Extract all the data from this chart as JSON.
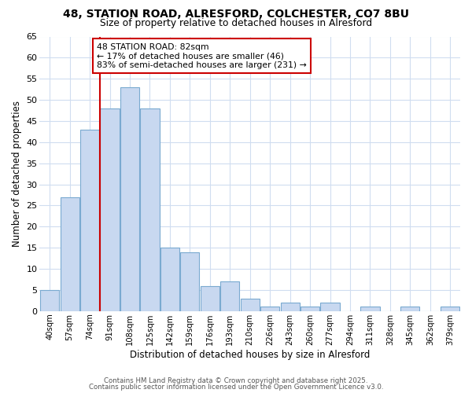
{
  "title_line1": "48, STATION ROAD, ALRESFORD, COLCHESTER, CO7 8BU",
  "title_line2": "Size of property relative to detached houses in Alresford",
  "xlabel": "Distribution of detached houses by size in Alresford",
  "ylabel": "Number of detached properties",
  "bar_labels": [
    "40sqm",
    "57sqm",
    "74sqm",
    "91sqm",
    "108sqm",
    "125sqm",
    "142sqm",
    "159sqm",
    "176sqm",
    "193sqm",
    "210sqm",
    "226sqm",
    "243sqm",
    "260sqm",
    "277sqm",
    "294sqm",
    "311sqm",
    "328sqm",
    "345sqm",
    "362sqm",
    "379sqm"
  ],
  "bar_values": [
    5,
    27,
    43,
    48,
    53,
    48,
    15,
    14,
    6,
    7,
    3,
    1,
    2,
    1,
    2,
    0,
    1,
    0,
    1,
    0,
    1
  ],
  "bar_color": "#c8d8f0",
  "bar_edge_color": "#7aaad0",
  "annotation_text": "48 STATION ROAD: 82sqm\n← 17% of detached houses are smaller (46)\n83% of semi-detached houses are larger (231) →",
  "vline_x": 2.5,
  "vline_color": "#cc0000",
  "ylim": [
    0,
    65
  ],
  "yticks": [
    0,
    5,
    10,
    15,
    20,
    25,
    30,
    35,
    40,
    45,
    50,
    55,
    60,
    65
  ],
  "bg_color": "#ffffff",
  "plot_bg_color": "#ffffff",
  "grid_color": "#d0ddf0",
  "footer_line1": "Contains HM Land Registry data © Crown copyright and database right 2025.",
  "footer_line2": "Contains public sector information licensed under the Open Government Licence v3.0."
}
